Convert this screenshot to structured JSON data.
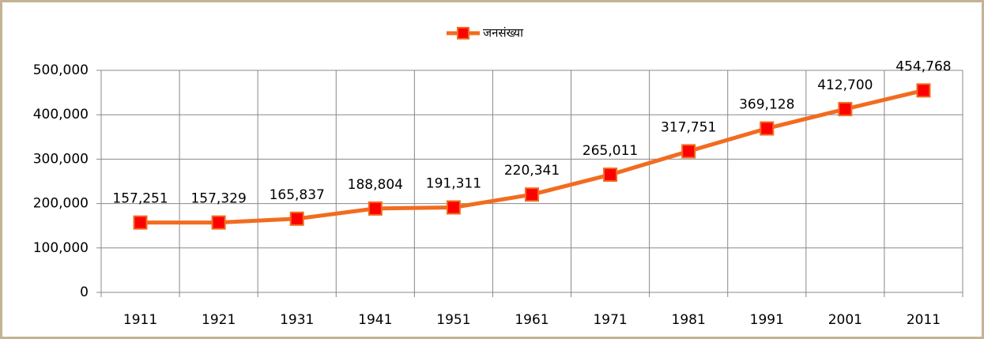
{
  "chart_data": {
    "type": "line",
    "categories": [
      "1911",
      "1921",
      "1931",
      "1941",
      "1951",
      "1961",
      "1971",
      "1981",
      "1991",
      "2001",
      "2011"
    ],
    "series": [
      {
        "name": "जनसंख्या",
        "color": "#f26c1f",
        "marker_color": "#ff0000",
        "values": [
          157251,
          157329,
          165837,
          188804,
          191311,
          220341,
          265011,
          317751,
          369128,
          412700,
          454768
        ],
        "value_labels": [
          "157,251",
          "157,329",
          "165,837",
          "188,804",
          "191,311",
          "220,341",
          "265,011",
          "317,751",
          "369,128",
          "412,700",
          "454,768"
        ]
      }
    ],
    "ylim": [
      0,
      500000
    ],
    "yticks": [
      0,
      {
        "value": 100000,
        "label": "100,000"
      },
      {
        "value": 200000,
        "label": "200,000"
      },
      {
        "value": 300000,
        "label": "300,000"
      },
      {
        "value": 400000,
        "label": "400,000"
      },
      {
        "value": 500000,
        "label": "500,000"
      }
    ],
    "grid": true,
    "legend": "top"
  }
}
